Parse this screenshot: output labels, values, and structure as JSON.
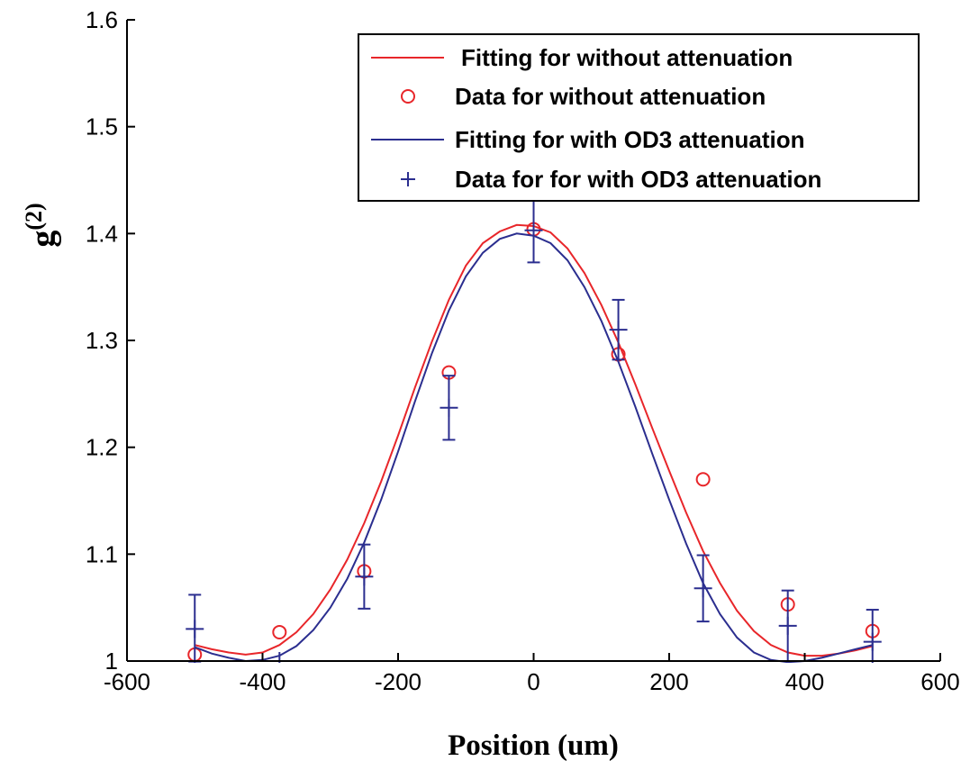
{
  "chart_data": {
    "type": "line",
    "title": "",
    "xlabel": "Position (um)",
    "ylabel_base": "g",
    "ylabel_sup": "(2)",
    "xlim": [
      -600,
      600
    ],
    "ylim": [
      1,
      1.6
    ],
    "xticks": [
      -600,
      -400,
      -200,
      0,
      200,
      400,
      600
    ],
    "xtick_labels": [
      "-600",
      "-400",
      "-200",
      "0",
      "200",
      "400",
      "600"
    ],
    "yticks": [
      1,
      1.1,
      1.2,
      1.3,
      1.4,
      1.5,
      1.6
    ],
    "ytick_labels": [
      "1",
      "1.1",
      "1.2",
      "1.3",
      "1.4",
      "1.5",
      "1.6"
    ],
    "grid": false,
    "legend_position": "top-right",
    "colors": {
      "red": "#e8262a",
      "blue": "#2b2e8f"
    },
    "series": [
      {
        "name": "Fitting for without attenuation",
        "kind": "line",
        "color": "#e8262a",
        "x": [
          -500,
          -475,
          -450,
          -425,
          -400,
          -375,
          -350,
          -325,
          -300,
          -275,
          -250,
          -225,
          -200,
          -175,
          -150,
          -125,
          -100,
          -75,
          -50,
          -25,
          0,
          25,
          50,
          75,
          100,
          125,
          150,
          175,
          200,
          225,
          250,
          275,
          300,
          325,
          350,
          375,
          400,
          425,
          450,
          475,
          500
        ],
        "y": [
          1.015,
          1.011,
          1.008,
          1.006,
          1.008,
          1.015,
          1.027,
          1.044,
          1.067,
          1.095,
          1.129,
          1.168,
          1.211,
          1.256,
          1.299,
          1.338,
          1.37,
          1.391,
          1.402,
          1.408,
          1.407,
          1.401,
          1.386,
          1.363,
          1.333,
          1.298,
          1.259,
          1.218,
          1.178,
          1.139,
          1.103,
          1.073,
          1.047,
          1.028,
          1.015,
          1.008,
          1.005,
          1.005,
          1.007,
          1.01,
          1.014
        ]
      },
      {
        "name": "Data for without attenuation",
        "kind": "marker-circle",
        "color": "#e8262a",
        "x": [
          -500,
          -375,
          -250,
          -125,
          0,
          125,
          250,
          375,
          500
        ],
        "y": [
          1.006,
          1.027,
          1.084,
          1.27,
          1.404,
          1.287,
          1.17,
          1.053,
          1.028
        ]
      },
      {
        "name": "Fitting for with OD3 attenuation",
        "kind": "line",
        "color": "#2b2e8f",
        "x": [
          -500,
          -475,
          -450,
          -425,
          -400,
          -375,
          -350,
          -325,
          -300,
          -275,
          -250,
          -225,
          -200,
          -175,
          -150,
          -125,
          -100,
          -75,
          -50,
          -25,
          0,
          25,
          50,
          75,
          100,
          125,
          150,
          175,
          200,
          225,
          250,
          275,
          300,
          325,
          350,
          375,
          400,
          425,
          450,
          475,
          500
        ],
        "y": [
          1.013,
          1.007,
          1.003,
          1.0,
          1.001,
          1.005,
          1.014,
          1.029,
          1.05,
          1.077,
          1.111,
          1.151,
          1.196,
          1.243,
          1.288,
          1.328,
          1.36,
          1.382,
          1.395,
          1.4,
          1.398,
          1.391,
          1.375,
          1.35,
          1.318,
          1.28,
          1.238,
          1.194,
          1.151,
          1.11,
          1.073,
          1.044,
          1.022,
          1.008,
          1.001,
          0.999,
          1.0,
          1.003,
          1.007,
          1.011,
          1.015
        ]
      },
      {
        "name": "Data for for with OD3 attenuation",
        "kind": "marker-plus",
        "color": "#2b2e8f",
        "x": [
          -500,
          -375,
          -250,
          -125,
          0,
          125,
          250,
          375,
          500
        ],
        "y": [
          1.03,
          1.0,
          1.079,
          1.237,
          1.403,
          1.31,
          1.068,
          1.033,
          1.018
        ],
        "err": [
          0.032,
          0.0,
          0.03,
          0.03,
          0.03,
          0.028,
          0.031,
          0.033,
          0.03
        ]
      }
    ]
  }
}
